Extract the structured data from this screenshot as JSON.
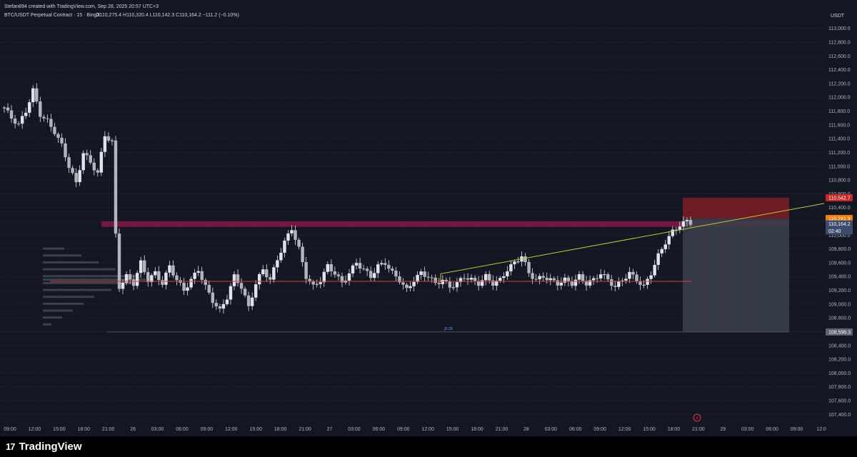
{
  "header": {
    "attribution": "Stefan894 created with TradingView.com, Sep 28, 2025 20:57 UTC+3",
    "symbol_line": "BTC/USDT Perpetual Contract · 15 · BingX",
    "ohlc": "O110,275.4  H110,320.4  L110,142.3  C110,164.2  −111.2 (−0.10%)",
    "currency": "USDT"
  },
  "footer": {
    "brand": "TradingView",
    "mark": "17"
  },
  "colors": {
    "background": "#131722",
    "text": "#b2b5be",
    "resistance_zone": "#c2185b",
    "poc_line": "#e53935",
    "trendline": "#c0ca33",
    "stop_zone": "#7f1d23",
    "target_zone": "#3a3f4b",
    "candle": "#e0e3eb",
    "price_label_current": "#f57c00",
    "price_label_stop": "#c62828",
    "price_label_target": "#5d6170"
  },
  "chart_data": {
    "type": "candlestick",
    "title": "BTC/USDT Perpetual Contract · 15 · BingX",
    "ylabel": "USDT",
    "ylim": [
      107300,
      113100
    ],
    "y_ticks": [
      "113,000.0",
      "112,800.0",
      "112,600.0",
      "112,400.0",
      "112,200.0",
      "112,000.0",
      "111,800.0",
      "111,600.0",
      "111,400.0",
      "111,200.0",
      "111,000.0",
      "110,800.0",
      "110,600.0",
      "110,400.0",
      "110,200.0",
      "110,000.0",
      "109,800.0",
      "109,600.0",
      "109,400.0",
      "109,200.0",
      "109,000.0",
      "108,800.0",
      "108,600.0",
      "108,400.0",
      "108,200.0",
      "108,000.0",
      "107,800.0",
      "107,600.0",
      "107,400.0"
    ],
    "x_ticks": [
      "09:00",
      "12:00",
      "15:00",
      "18:00",
      "21:00",
      "26",
      "03:00",
      "06:00",
      "09:00",
      "12:00",
      "15:00",
      "18:00",
      "21:00",
      "27",
      "03:00",
      "06:00",
      "09:00",
      "12:00",
      "15:00",
      "18:00",
      "21:00",
      "28",
      "03:00",
      "06:00",
      "09:00",
      "12:00",
      "15:00",
      "18:00",
      "21:00",
      "29",
      "03:00",
      "06:00",
      "09:00",
      "12:0"
    ],
    "close_path": [
      [
        0,
        111850
      ],
      [
        1,
        111700
      ],
      [
        2,
        111600
      ],
      [
        3,
        111800
      ],
      [
        4,
        112100
      ],
      [
        5,
        111750
      ],
      [
        6,
        111650
      ],
      [
        7,
        111500
      ],
      [
        8,
        111300
      ],
      [
        9,
        111000
      ],
      [
        10,
        110750
      ],
      [
        11,
        111200
      ],
      [
        12,
        111050
      ],
      [
        13,
        110900
      ],
      [
        14,
        111450
      ],
      [
        15,
        111350
      ],
      [
        15.4,
        110250
      ],
      [
        15.7,
        109500
      ],
      [
        16,
        109250
      ],
      [
        17,
        109400
      ],
      [
        18,
        109300
      ],
      [
        19,
        109600
      ],
      [
        20,
        109350
      ],
      [
        21,
        109450
      ],
      [
        22,
        109300
      ],
      [
        23,
        109550
      ],
      [
        24,
        109350
      ],
      [
        25,
        109200
      ],
      [
        26,
        109350
      ],
      [
        27,
        109500
      ],
      [
        28,
        109250
      ],
      [
        29,
        109050
      ],
      [
        30,
        108900
      ],
      [
        31,
        109100
      ],
      [
        32,
        109400
      ],
      [
        33,
        109250
      ],
      [
        34,
        108950
      ],
      [
        35,
        109300
      ],
      [
        36,
        109500
      ],
      [
        37,
        109350
      ],
      [
        38,
        109650
      ],
      [
        39,
        109900
      ],
      [
        40,
        110100
      ],
      [
        41,
        109800
      ],
      [
        42,
        109400
      ],
      [
        43,
        109250
      ],
      [
        44,
        109350
      ],
      [
        45,
        109550
      ],
      [
        46,
        109450
      ],
      [
        47,
        109300
      ],
      [
        48,
        109450
      ],
      [
        49,
        109600
      ],
      [
        50,
        109500
      ],
      [
        51,
        109400
      ],
      [
        52,
        109550
      ],
      [
        53,
        109600
      ],
      [
        54,
        109450
      ],
      [
        55,
        109350
      ],
      [
        56,
        109200
      ],
      [
        57,
        109350
      ],
      [
        58,
        109450
      ],
      [
        59,
        109400
      ],
      [
        60,
        109300
      ],
      [
        61,
        109350
      ],
      [
        62,
        109250
      ],
      [
        63,
        109300
      ],
      [
        64,
        109400
      ],
      [
        65,
        109350
      ],
      [
        66,
        109300
      ],
      [
        67,
        109400
      ],
      [
        68,
        109300
      ],
      [
        69,
        109350
      ],
      [
        70,
        109500
      ],
      [
        71,
        109600
      ],
      [
        72,
        109700
      ],
      [
        73,
        109450
      ],
      [
        74,
        109350
      ],
      [
        75,
        109400
      ],
      [
        76,
        109350
      ],
      [
        77,
        109300
      ],
      [
        78,
        109350
      ],
      [
        79,
        109300
      ],
      [
        80,
        109400
      ],
      [
        81,
        109300
      ],
      [
        82,
        109350
      ],
      [
        83,
        109450
      ],
      [
        84,
        109350
      ],
      [
        85,
        109250
      ],
      [
        86,
        109350
      ],
      [
        87,
        109450
      ],
      [
        88,
        109350
      ],
      [
        89,
        109250
      ],
      [
        90,
        109450
      ],
      [
        91,
        109700
      ],
      [
        92,
        109900
      ],
      [
        93,
        110050
      ],
      [
        94,
        110150
      ],
      [
        95,
        110200
      ],
      [
        96,
        110164
      ]
    ],
    "series": [
      {
        "name": "resistance-zone",
        "values": [
          110120,
          110200
        ]
      },
      {
        "name": "poc-line",
        "values": [
          109330
        ]
      },
      {
        "name": "trendline",
        "values": [
          109440,
          110460
        ]
      }
    ],
    "annotations": [
      {
        "text": "p.oi",
        "value": 108620
      },
      {
        "text": "110,542.7",
        "value": 110542.7,
        "role": "stop"
      },
      {
        "text": "110,241.9",
        "value": 110241.9,
        "role": "entry"
      },
      {
        "text": "110,164.2",
        "value": 110164.2,
        "role": "current"
      },
      {
        "text": "02:40",
        "value": 110060,
        "role": "countdown"
      },
      {
        "text": "108,596.3",
        "value": 108596.3,
        "role": "target"
      }
    ],
    "grid": true,
    "legend": "none"
  }
}
